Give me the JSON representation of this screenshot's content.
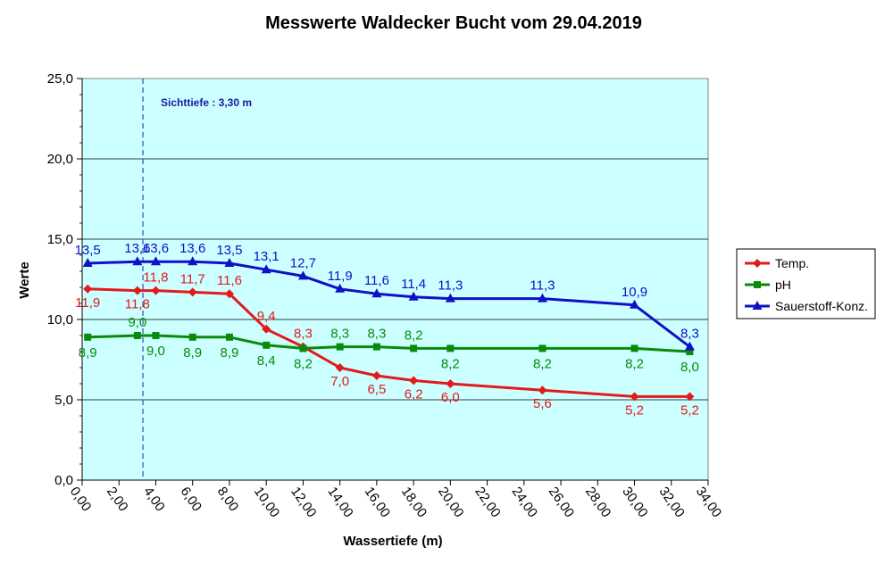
{
  "chart_data": {
    "type": "line",
    "title": "Messwerte Waldecker Bucht vom 29.04.2019",
    "xlabel": "Wassertiefe (m)",
    "ylabel": "Werte",
    "xlim": [
      0,
      34
    ],
    "ylim": [
      0,
      25
    ],
    "x_ticks": [
      "0,00",
      "2,00",
      "4,00",
      "6,00",
      "8,00",
      "10,00",
      "12,00",
      "14,00",
      "16,00",
      "18,00",
      "20,00",
      "22,00",
      "24,00",
      "26,00",
      "28,00",
      "30,00",
      "32,00",
      "34,00"
    ],
    "y_ticks": [
      "0,0",
      "5,0",
      "10,0",
      "15,0",
      "20,0",
      "25,0"
    ],
    "grid": "horizontal",
    "legend_position": "right",
    "plot_background": "#ccffff",
    "annotation": {
      "text": "Sichttiefe : 3,30 m",
      "x": 3.3,
      "color": "#1f3f9f"
    },
    "series": [
      {
        "name": "Temp.",
        "color": "#e31a1c",
        "marker": "diamond",
        "x": [
          0.3,
          3,
          4,
          6,
          8,
          10,
          12,
          14,
          16,
          18,
          20,
          25,
          30,
          33
        ],
        "values": [
          11.9,
          11.8,
          11.8,
          11.7,
          11.6,
          9.4,
          8.3,
          7.0,
          6.5,
          6.2,
          6.0,
          5.6,
          5.2,
          5.2
        ],
        "labels": [
          "11,9",
          "11,8",
          "11,8",
          "11,7",
          "11,6",
          "9,4",
          "8,3",
          "7,0",
          "6,5",
          "6,2",
          "6,0",
          "5,6",
          "5,2",
          "5,2"
        ]
      },
      {
        "name": "pH",
        "color": "#0a8a0a",
        "marker": "square",
        "x": [
          0.3,
          3,
          4,
          6,
          8,
          10,
          12,
          14,
          16,
          18,
          20,
          25,
          30,
          33
        ],
        "values": [
          8.9,
          9.0,
          9.0,
          8.9,
          8.9,
          8.4,
          8.2,
          8.3,
          8.3,
          8.2,
          8.2,
          8.2,
          8.2,
          8.0
        ],
        "labels": [
          "8,9",
          "9,0",
          "9,0",
          "8,9",
          "8,9",
          "8,4",
          "8,2",
          "8,3",
          "8,3",
          "8,2",
          "8,2",
          "8,2",
          "8,2",
          "8,0"
        ]
      },
      {
        "name": "Sauerstoff-Konz.",
        "color": "#1010c8",
        "marker": "triangle",
        "x": [
          0.3,
          3,
          4,
          6,
          8,
          10,
          12,
          14,
          16,
          18,
          20,
          25,
          30,
          33
        ],
        "values": [
          13.5,
          13.6,
          13.6,
          13.6,
          13.5,
          13.1,
          12.7,
          11.9,
          11.6,
          11.4,
          11.3,
          11.3,
          10.9,
          8.3
        ],
        "labels": [
          "13,5",
          "13,6",
          "13,6",
          "13,6",
          "13,5",
          "13,1",
          "12,7",
          "11,9",
          "11,6",
          "11,4",
          "11,3",
          "11,3",
          "10,9",
          "8,3"
        ]
      }
    ]
  }
}
